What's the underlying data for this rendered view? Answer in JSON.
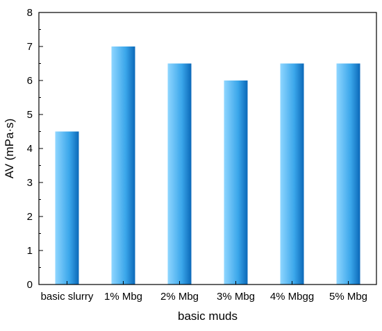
{
  "chart_data": {
    "type": "bar",
    "title": "",
    "xlabel": "basic muds",
    "ylabel": "AV (mPa·s)",
    "categories": [
      "basic slurry",
      "1% Mbg",
      "2% Mbg",
      "3% Mbg",
      "4% Mbgg",
      "5% Mbg"
    ],
    "values": [
      4.5,
      7.0,
      6.5,
      6.0,
      6.5,
      6.5
    ],
    "ylim": [
      0,
      8
    ],
    "yticks": [
      0,
      1,
      2,
      3,
      4,
      5,
      6,
      7,
      8
    ],
    "grid": false,
    "legend": "none",
    "bar_gradient": [
      "#8fd6ff",
      "#0b68b8"
    ]
  }
}
